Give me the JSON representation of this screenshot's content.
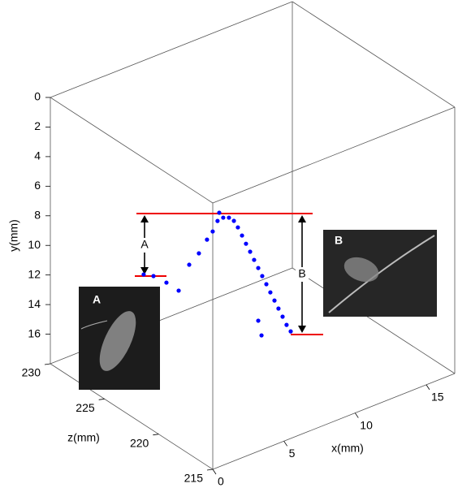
{
  "chart_data": {
    "type": "scatter3d",
    "xlabel": "x(mm)",
    "ylabel": "y(mm)",
    "zlabel": "z(mm)",
    "xlim": [
      0,
      17
    ],
    "ylim": [
      0,
      18
    ],
    "zlim": [
      215,
      230
    ],
    "xticks": [
      0,
      5,
      10,
      15
    ],
    "yticks": [
      0,
      2,
      4,
      6,
      8,
      10,
      12,
      14,
      16
    ],
    "zticks": [
      215,
      220,
      225,
      230
    ],
    "color": "#0000ff",
    "x": [
      0.47,
      1.16,
      2.07,
      2.93,
      3.67,
      4.35,
      4.92,
      5.32,
      5.66,
      5.78,
      6.06,
      6.46,
      6.81,
      7.09,
      7.38,
      7.66,
      7.95,
      8.23,
      8.52,
      8.8,
      9.09,
      9.37,
      9.66,
      9.94,
      10.23,
      10.51,
      10.8,
      8.52,
      8.75
    ],
    "y": [
      8.34,
      8.71,
      9.5,
      10.37,
      8.9,
      8.39,
      7.68,
      7.28,
      6.7,
      6.19,
      6.63,
      6.78,
      7.13,
      7.68,
      8.34,
      9.0,
      9.65,
      10.31,
      10.97,
      11.62,
      12.28,
      12.94,
      13.6,
      14.25,
      14.91,
      15.57,
      16.12,
      14.53,
      15.61
    ],
    "z": [
      222,
      222,
      222,
      222,
      222,
      222,
      222,
      222,
      222,
      222,
      222,
      222,
      222,
      222,
      222,
      222,
      222,
      222,
      222,
      222,
      222,
      222,
      222,
      222,
      222,
      222,
      222,
      222,
      222
    ],
    "annotations": [
      "A",
      "B"
    ],
    "insets": [
      {
        "label": "A"
      },
      {
        "label": "B"
      }
    ]
  }
}
